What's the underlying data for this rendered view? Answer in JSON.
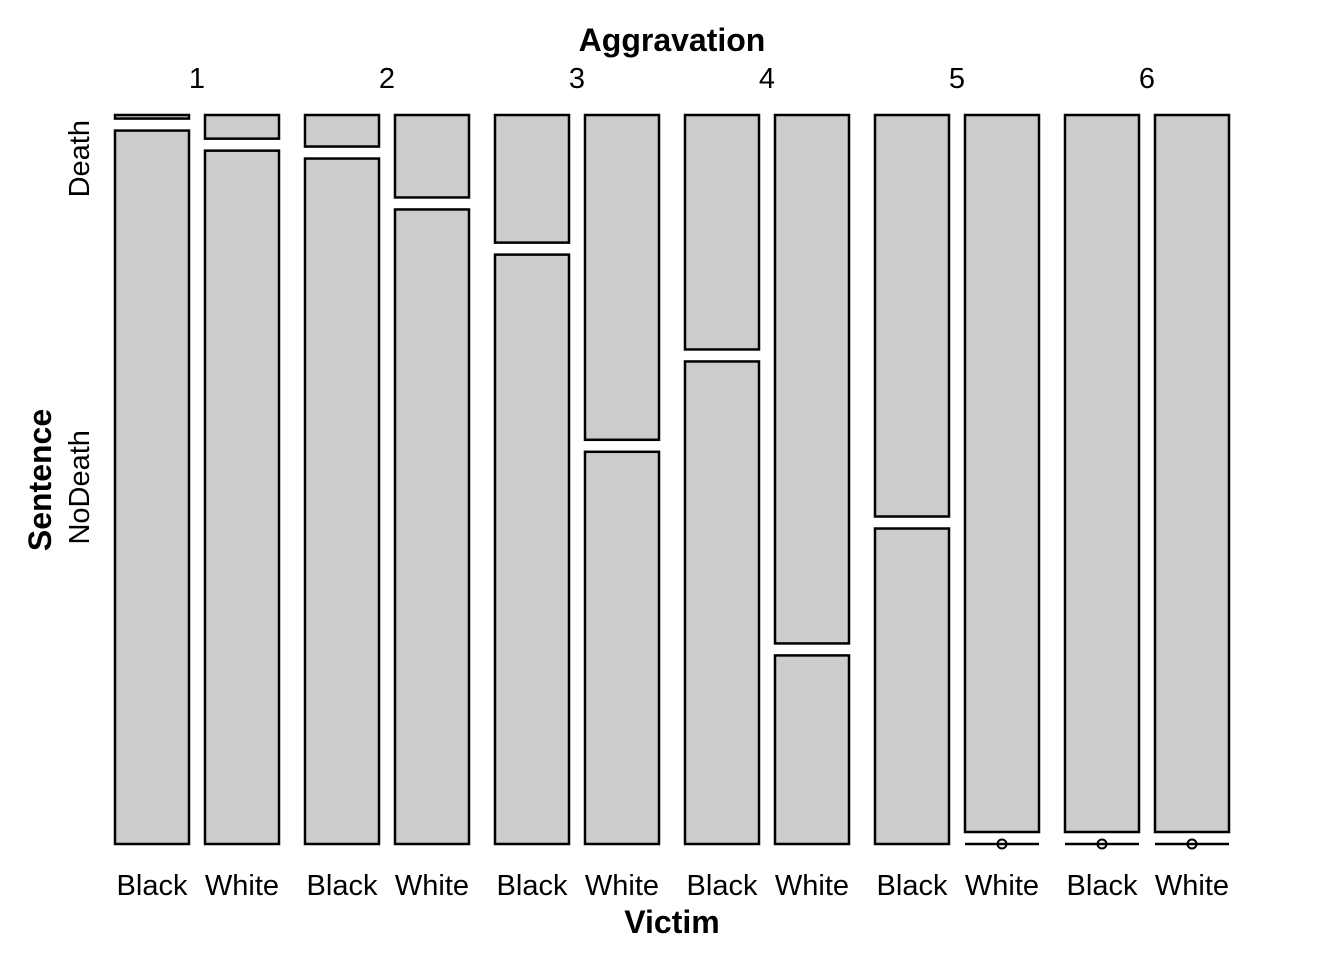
{
  "chart_data": {
    "type": "mosaic",
    "top_title": "Aggravation",
    "bottom_title": "Victim",
    "left_title": "Sentence",
    "aggravation_levels": [
      "1",
      "2",
      "3",
      "4",
      "5",
      "6"
    ],
    "victim_levels": [
      "Black",
      "White"
    ],
    "sentence_levels": [
      "Death",
      "NoDeath"
    ],
    "death_proportion": [
      [
        0.005,
        0.033
      ],
      [
        0.044,
        0.115
      ],
      [
        0.178,
        0.453
      ],
      [
        0.327,
        0.737
      ],
      [
        0.56,
        1.0
      ],
      [
        1.0,
        1.0
      ]
    ]
  }
}
